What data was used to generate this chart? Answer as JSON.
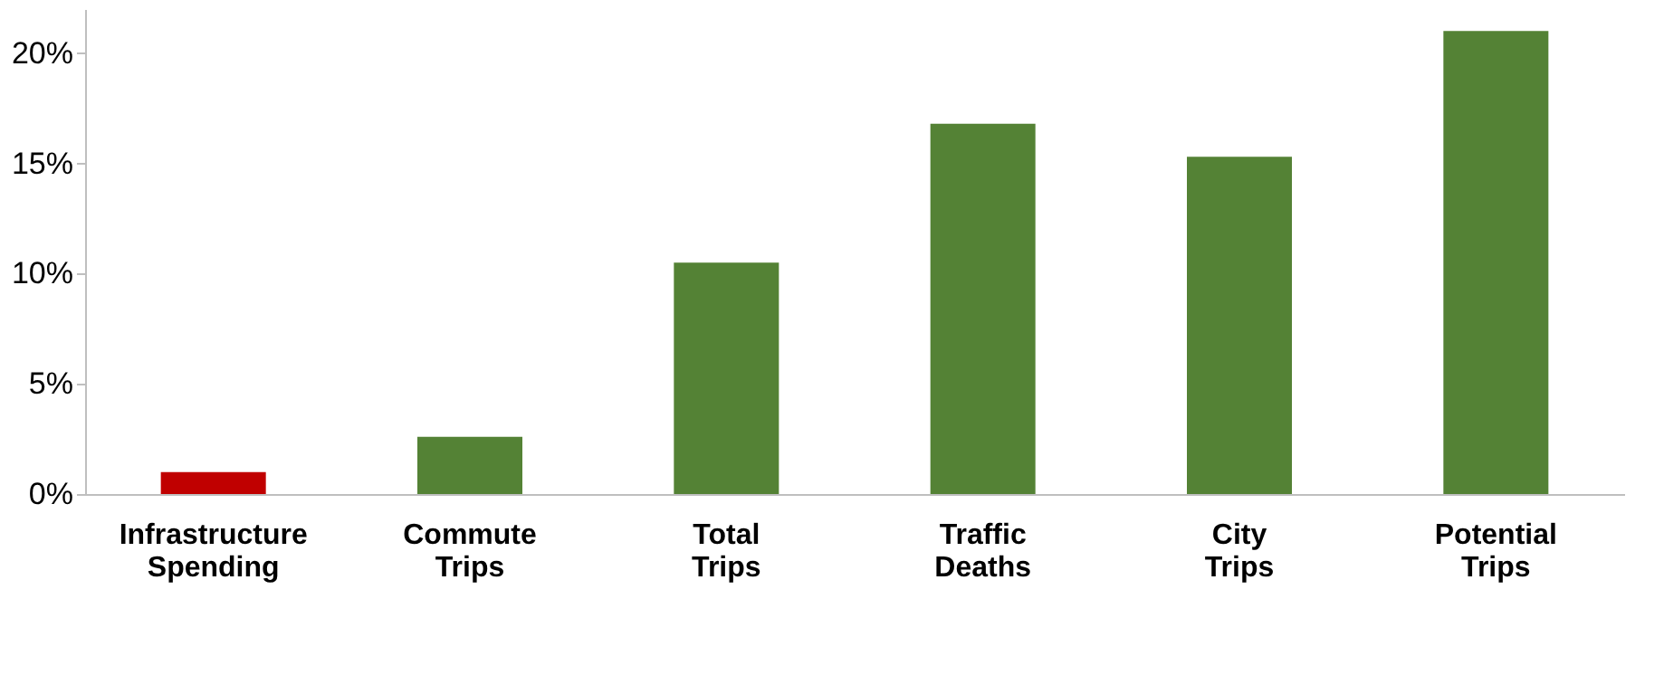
{
  "chart_data": {
    "type": "bar",
    "categories": [
      "Infrastructure Spending",
      "Commute Trips",
      "Total Trips",
      "Traffic Deaths",
      "City Trips",
      "Potential Trips"
    ],
    "values": [
      1.0,
      2.6,
      10.5,
      16.8,
      15.3,
      21.0
    ],
    "colors": [
      "#c00000",
      "#548235",
      "#548235",
      "#548235",
      "#548235",
      "#548235"
    ],
    "ylim": [
      0,
      22
    ],
    "yticks": [
      {
        "value": 0,
        "label": "0%"
      },
      {
        "value": 5,
        "label": "5%"
      },
      {
        "value": 10,
        "label": "10%"
      },
      {
        "value": 15,
        "label": "15%"
      },
      {
        "value": 20,
        "label": "20%"
      }
    ],
    "grid": false
  }
}
